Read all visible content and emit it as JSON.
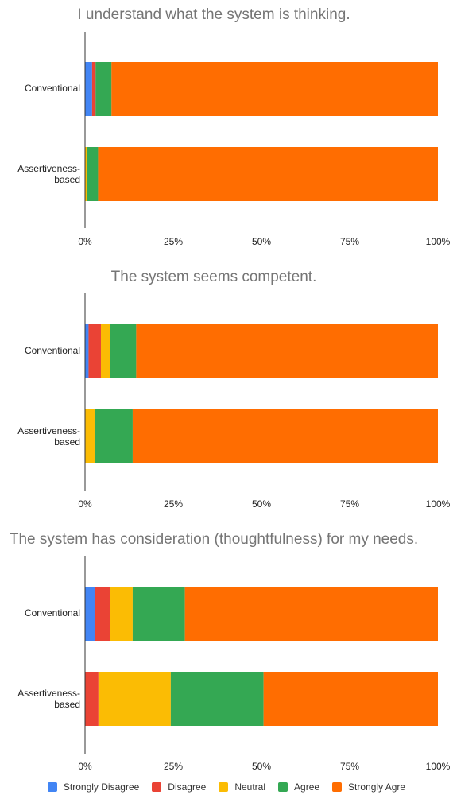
{
  "colors": {
    "strongly_disagree": "#4285f4",
    "disagree": "#ea4335",
    "neutral": "#fbbc04",
    "agree": "#34a853",
    "strongly_agree": "#ff6d01",
    "title": "#757575",
    "text": "#222222",
    "axis": "#333333"
  },
  "legend": [
    "Strongly Disagree",
    "Disagree",
    "Neutral",
    "Agree",
    "Strongly Agre"
  ],
  "chart_data": [
    {
      "type": "bar",
      "orientation": "horizontal",
      "stacked": "percent",
      "title": "I understand what the system is thinking.",
      "categories": [
        "Conventional",
        "Assertiveness-based"
      ],
      "series": [
        {
          "name": "Strongly Disagree",
          "values": [
            2,
            0
          ]
        },
        {
          "name": "Disagree",
          "values": [
            1,
            0
          ]
        },
        {
          "name": "Neutral",
          "values": [
            0,
            0.5
          ]
        },
        {
          "name": "Agree",
          "values": [
            4.5,
            3.2
          ]
        },
        {
          "name": "Strongly Agre",
          "values": [
            92.5,
            96.3
          ]
        }
      ],
      "xticks": [
        "0%",
        "25%",
        "50%",
        "75%",
        "100%"
      ],
      "xlim": [
        0,
        100
      ]
    },
    {
      "type": "bar",
      "orientation": "horizontal",
      "stacked": "percent",
      "title": "The system seems competent.",
      "categories": [
        "Conventional",
        "Assertiveness-based"
      ],
      "series": [
        {
          "name": "Strongly Disagree",
          "values": [
            1,
            0
          ]
        },
        {
          "name": "Disagree",
          "values": [
            3.5,
            0
          ]
        },
        {
          "name": "Neutral",
          "values": [
            2.5,
            2.7
          ]
        },
        {
          "name": "Agree",
          "values": [
            7.5,
            10.8
          ]
        },
        {
          "name": "Strongly Agre",
          "values": [
            85.5,
            86.5
          ]
        }
      ],
      "xticks": [
        "0%",
        "25%",
        "50%",
        "75%",
        "100%"
      ],
      "xlim": [
        0,
        100
      ]
    },
    {
      "type": "bar",
      "orientation": "horizontal",
      "stacked": "percent",
      "title": "The system has consideration (thoughtfulness) for my needs.",
      "categories": [
        "Conventional",
        "Assertiveness-based"
      ],
      "series": [
        {
          "name": "Strongly Disagree",
          "values": [
            2.7,
            0
          ]
        },
        {
          "name": "Disagree",
          "values": [
            4.3,
            3.8
          ]
        },
        {
          "name": "Neutral",
          "values": [
            6.5,
            20.5
          ]
        },
        {
          "name": "Agree",
          "values": [
            14.8,
            26.3
          ]
        },
        {
          "name": "Strongly Agre",
          "values": [
            71.7,
            49.4
          ]
        }
      ],
      "xticks": [
        "0%",
        "25%",
        "50%",
        "75%",
        "100%"
      ],
      "xlim": [
        0,
        100
      ]
    }
  ]
}
